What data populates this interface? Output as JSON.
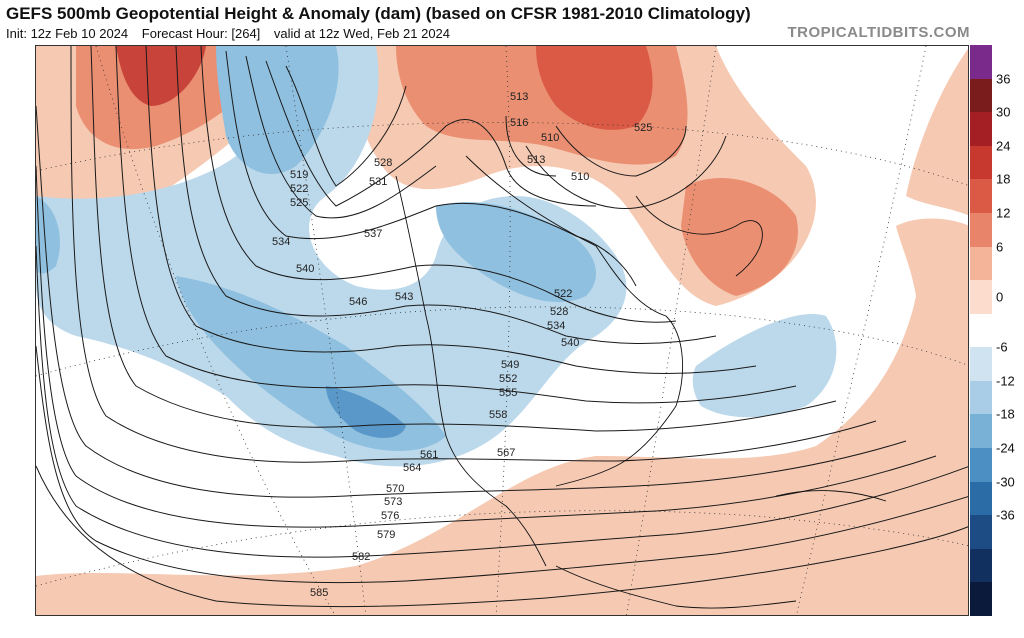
{
  "header": {
    "title": "GEFS 500mb Geopotential Height & Anomaly (dam) (based on CFSR 1981-2010 Climatology)",
    "init": "Init: 12z Feb 10 2024",
    "forecast_hour": "Forecast Hour: [264]",
    "valid": "valid at 12z Wed, Feb 21 2024",
    "brand": "TROPICALTIDBITS.COM"
  },
  "colorbar": {
    "ticks": [
      "36",
      "30",
      "24",
      "18",
      "12",
      "6",
      "0",
      "-6",
      "-12",
      "-18",
      "-24",
      "-30",
      "-36"
    ],
    "colors": [
      "#7a2a8a",
      "#7a1c1c",
      "#a31f24",
      "#c7392f",
      "#db5a45",
      "#e8846a",
      "#f3b49a",
      "#fbdccd",
      "#ffffff",
      "#d0e3f0",
      "#a9cde6",
      "#79b0d6",
      "#4c8fc3",
      "#2c6ca6",
      "#1d4c84",
      "#12305f",
      "#0b1a3a"
    ]
  },
  "map": {
    "anomaly_colors": {
      "warm_light": "#f6c9b2",
      "warm_mid": "#ea8f72",
      "warm_dark": "#c8443a",
      "cold_light": "#bcd9ec",
      "cold_mid": "#8fc0df",
      "cold_dark": "#5a98c9"
    },
    "contour_labels": [
      "519",
      "522",
      "525",
      "528",
      "531",
      "534",
      "537",
      "540",
      "543",
      "546",
      "549",
      "552",
      "555",
      "558",
      "561",
      "564",
      "567",
      "570",
      "573",
      "576",
      "579",
      "582",
      "585",
      "513",
      "516",
      "510",
      "525",
      "522",
      "528",
      "534",
      "540",
      "513",
      "510"
    ]
  }
}
